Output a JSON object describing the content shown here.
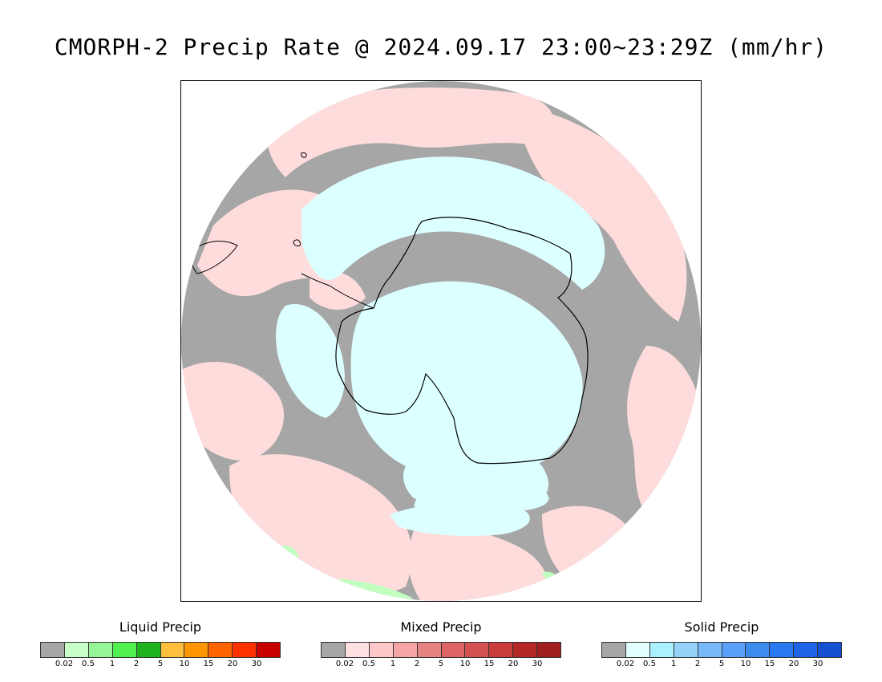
{
  "title": "CMORPH-2 Precip Rate @ 2024.09.17 23:00~23:29Z (mm/hr)",
  "map": {
    "projection": "south-polar-stereographic",
    "colors": {
      "no_precip": "#a6a6a6",
      "mixed_light": "#ffdcdc",
      "solid_light": "#dcffff",
      "liquid_light": "#c0ffc0",
      "coastline": "#000000"
    }
  },
  "legends": [
    {
      "title": "Liquid Precip",
      "colors": [
        "#a6a6a6",
        "#c8ffc8",
        "#96f596",
        "#50f050",
        "#1eb41e",
        "#ffbe3c",
        "#ff9600",
        "#ff6400",
        "#ff3200",
        "#c80000"
      ],
      "ticks": [
        "0.02",
        "0.5",
        "1",
        "2",
        "5",
        "10",
        "15",
        "20",
        "30"
      ]
    },
    {
      "title": "Mixed Precip",
      "colors": [
        "#a6a6a6",
        "#ffe1e1",
        "#ffc8c8",
        "#f5a5a5",
        "#e68282",
        "#dc6464",
        "#d25050",
        "#c83c3c",
        "#b42828",
        "#a01e1e"
      ],
      "ticks": [
        "0.02",
        "0.5",
        "1",
        "2",
        "5",
        "10",
        "15",
        "20",
        "30"
      ]
    },
    {
      "title": "Solid Precip",
      "colors": [
        "#a6a6a6",
        "#e1ffff",
        "#aaf0ff",
        "#96d2fa",
        "#78b9fa",
        "#5aa0fa",
        "#3c8cf0",
        "#2878f0",
        "#1e64e6",
        "#1450d2"
      ],
      "ticks": [
        "0.02",
        "0.5",
        "1",
        "2",
        "5",
        "10",
        "15",
        "20",
        "30"
      ]
    }
  ]
}
